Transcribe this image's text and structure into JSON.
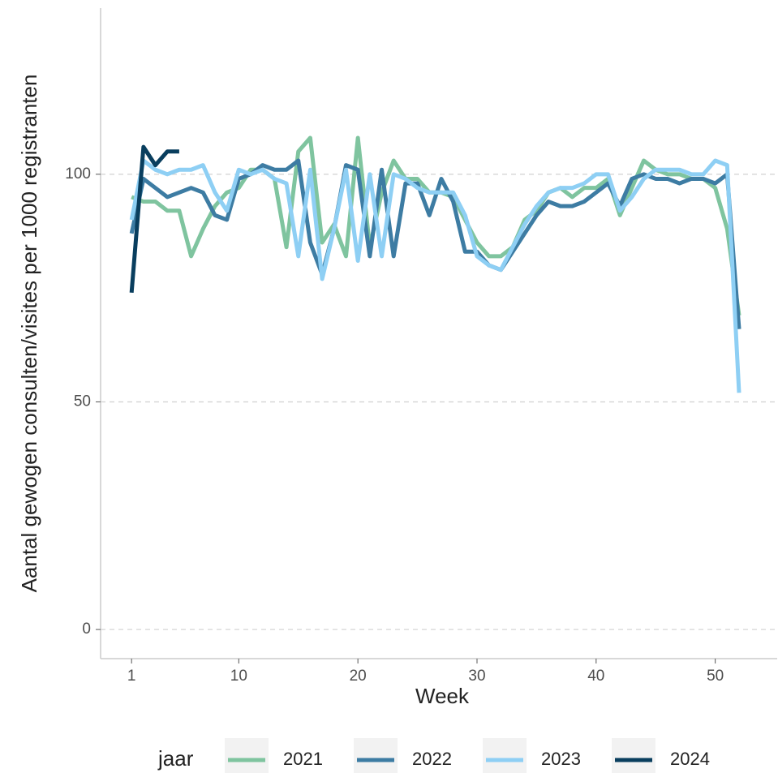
{
  "chart_data": {
    "type": "line",
    "xlabel": "Week",
    "ylabel": "Aantal gewogen consulten/visites per 1000 registranten",
    "legend_title": "jaar",
    "legend_position": "bottom",
    "x": [
      1,
      2,
      3,
      4,
      5,
      6,
      7,
      8,
      9,
      10,
      11,
      12,
      13,
      14,
      15,
      16,
      17,
      18,
      19,
      20,
      21,
      22,
      23,
      24,
      25,
      26,
      27,
      28,
      29,
      30,
      31,
      32,
      33,
      34,
      35,
      36,
      37,
      38,
      39,
      40,
      41,
      42,
      43,
      44,
      45,
      46,
      47,
      48,
      49,
      50,
      51,
      52
    ],
    "series": [
      {
        "name": "2021",
        "color": "#7fc49f",
        "values": [
          95,
          94,
          94,
          92,
          92,
          82,
          88,
          93,
          96,
          97,
          101,
          101,
          99,
          84,
          105,
          108,
          85,
          89,
          82,
          108,
          84,
          96,
          103,
          99,
          99,
          96,
          96,
          95,
          90,
          85,
          82,
          82,
          84,
          90,
          92,
          96,
          97,
          95,
          97,
          97,
          99,
          91,
          97,
          103,
          101,
          100,
          100,
          99,
          99,
          97,
          88,
          69
        ]
      },
      {
        "name": "2022",
        "color": "#3d7ca3",
        "values": [
          87,
          99,
          97,
          95,
          96,
          97,
          96,
          91,
          90,
          99,
          100,
          102,
          101,
          101,
          103,
          85,
          78,
          88,
          102,
          101,
          82,
          101,
          82,
          98,
          98,
          91,
          99,
          94,
          83,
          83,
          80,
          79,
          83,
          87,
          91,
          94,
          93,
          93,
          94,
          96,
          98,
          93,
          99,
          100,
          99,
          99,
          98,
          99,
          99,
          98,
          100,
          66
        ]
      },
      {
        "name": "2023",
        "color": "#8ecff4",
        "values": [
          90,
          103,
          101,
          100,
          101,
          101,
          102,
          96,
          92,
          101,
          100,
          101,
          99,
          98,
          82,
          101,
          77,
          88,
          101,
          81,
          100,
          82,
          100,
          99,
          97,
          96,
          96,
          96,
          91,
          82,
          80,
          79,
          84,
          89,
          93,
          96,
          97,
          97,
          98,
          100,
          100,
          92,
          95,
          99,
          101,
          101,
          101,
          100,
          100,
          103,
          102,
          52
        ]
      },
      {
        "name": "2024",
        "color": "#093e5e",
        "values": [
          74,
          106,
          102,
          105,
          105,
          null,
          null,
          null,
          null,
          null,
          null,
          null,
          null,
          null,
          null,
          null,
          null,
          null,
          null,
          null,
          null,
          null,
          null,
          null,
          null,
          null,
          null,
          null,
          null,
          null,
          null,
          null,
          null,
          null,
          null,
          null,
          null,
          null,
          null,
          null,
          null,
          null,
          null,
          null,
          null,
          null,
          null,
          null,
          null,
          null,
          null,
          null
        ]
      }
    ],
    "xlim": [
      -1.6,
      55.2
    ],
    "ylim": [
      -6.4,
      136.5
    ],
    "xticks": [
      1,
      10,
      20,
      30,
      40,
      50
    ],
    "yticks": [
      0,
      50,
      100
    ],
    "grid": true
  }
}
